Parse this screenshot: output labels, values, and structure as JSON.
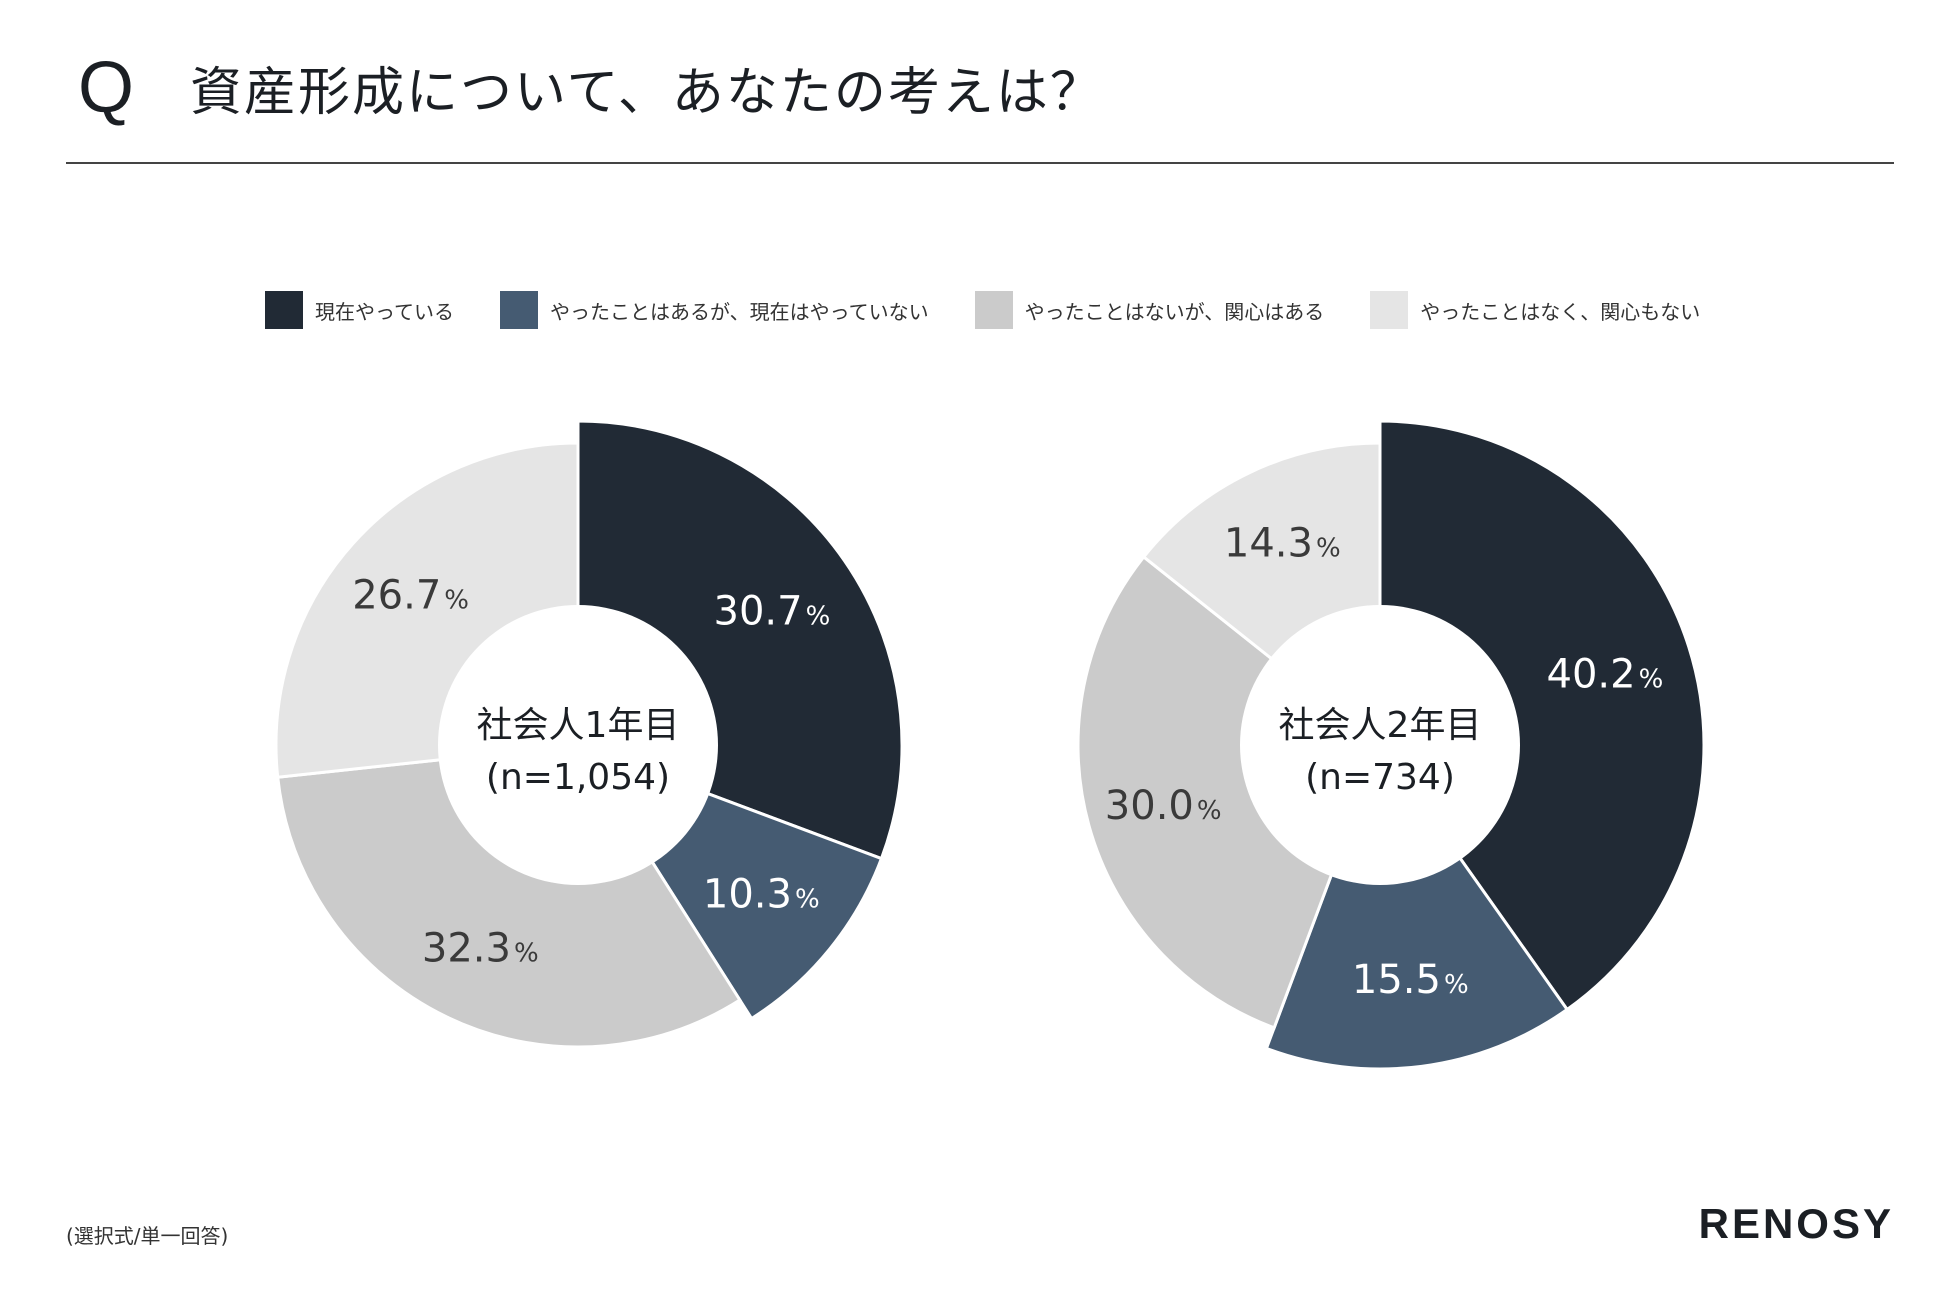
{
  "header": {
    "q_mark": "Q",
    "title": "資産形成について、あなたの考えは？"
  },
  "legend": [
    {
      "label": "現在やっている",
      "color": "#212a35"
    },
    {
      "label": "やったことはあるが、現在はやっていない",
      "color": "#455b72"
    },
    {
      "label": "やったことはないが、関心はある",
      "color": "#cbcbcb"
    },
    {
      "label": "やったことはなく、関心もない",
      "color": "#e5e5e5"
    }
  ],
  "chart_data": [
    {
      "type": "pie",
      "center_label": [
        "社会人1年目",
        "(n=1,054)"
      ],
      "categories": [
        "現在やっている",
        "やったことはあるが、現在はやっていない",
        "やったことはないが、関心はある",
        "やったことはなく、関心もない"
      ],
      "values": [
        30.7,
        10.3,
        32.3,
        26.7
      ],
      "value_labels": [
        "30.7",
        "10.3",
        "32.3",
        "26.7"
      ],
      "unit": "%",
      "colors": [
        "#212a35",
        "#455b72",
        "#cbcbcb",
        "#e5e5e5"
      ],
      "label_colors": [
        "#ffffff",
        "#ffffff",
        "#3a3a3a",
        "#3a3a3a"
      ]
    },
    {
      "type": "pie",
      "center_label": [
        "社会人2年目",
        "(n=734)"
      ],
      "categories": [
        "現在やっている",
        "やったことはあるが、現在はやっていない",
        "やったことはないが、関心はある",
        "やったことはなく、関心もない"
      ],
      "values": [
        40.2,
        15.5,
        30.0,
        14.3
      ],
      "value_labels": [
        "40.2",
        "15.5",
        "30.0",
        "14.3"
      ],
      "unit": "%",
      "colors": [
        "#212a35",
        "#455b72",
        "#cbcbcb",
        "#e5e5e5"
      ],
      "label_colors": [
        "#ffffff",
        "#ffffff",
        "#3a3a3a",
        "#3a3a3a"
      ]
    }
  ],
  "footer": {
    "note": "(選択式/単一回答)",
    "brand": "RENOSY"
  }
}
